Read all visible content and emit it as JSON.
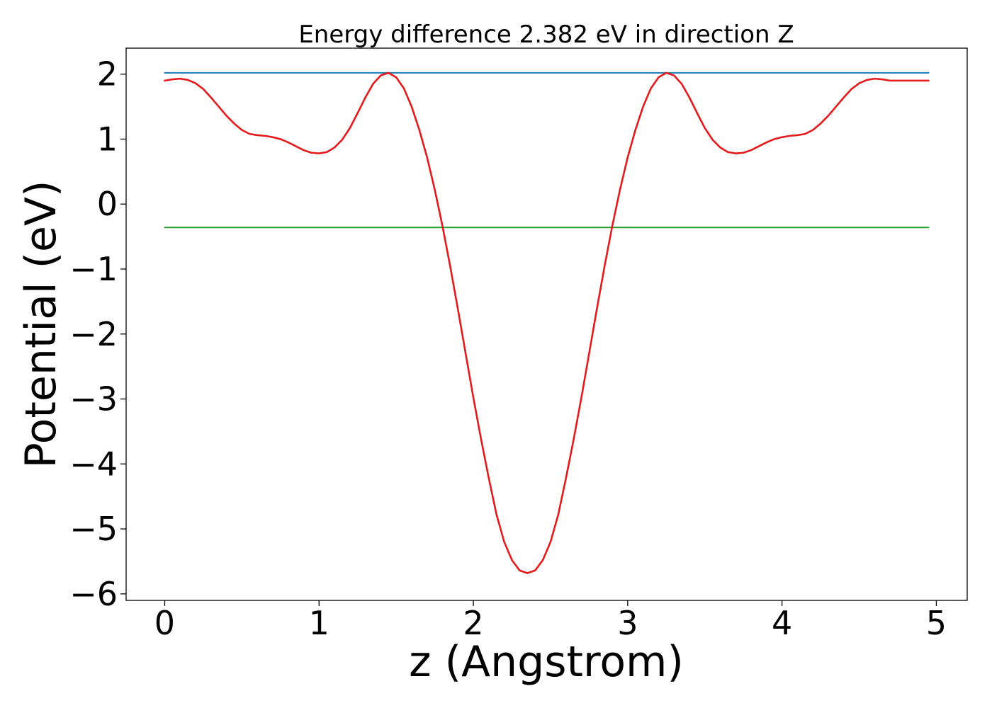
{
  "chart_data": {
    "type": "line",
    "title": "Energy difference 2.382 eV in direction Z",
    "xlabel": "z (Angstrom)",
    "ylabel": "Potential (eV)",
    "xlim": [
      -0.25,
      5.2
    ],
    "ylim": [
      -6.1,
      2.4
    ],
    "xticks": [
      0,
      1,
      2,
      3,
      4,
      5
    ],
    "yticks": [
      2,
      1,
      0,
      -1,
      -2,
      -3,
      -4,
      -5,
      -6
    ],
    "xtick_labels": [
      "0",
      "1",
      "2",
      "3",
      "4",
      "5"
    ],
    "ytick_labels": [
      "2",
      "1",
      "0",
      "−1",
      "−2",
      "−3",
      "−4",
      "−5",
      "−6"
    ],
    "grid": false,
    "series": [
      {
        "color": "#1f77b4",
        "x": [
          0,
          4.95
        ],
        "y": [
          2.02,
          2.02
        ]
      },
      {
        "color": "#2ca02c",
        "x": [
          0,
          4.95
        ],
        "y": [
          -0.36,
          -0.36
        ]
      },
      {
        "color": "#e41a1c",
        "x": [
          0,
          0.05,
          0.1,
          0.15,
          0.2,
          0.25,
          0.3,
          0.35,
          0.4,
          0.45,
          0.5,
          0.55,
          0.6,
          0.65,
          0.7,
          0.75,
          0.8,
          0.85,
          0.9,
          0.95,
          1.0,
          1.05,
          1.1,
          1.15,
          1.2,
          1.25,
          1.3,
          1.35,
          1.4,
          1.45,
          1.5,
          1.55,
          1.6,
          1.65,
          1.7,
          1.75,
          1.8,
          1.85,
          1.9,
          1.95,
          2.0,
          2.05,
          2.1,
          2.15,
          2.2,
          2.25,
          2.3,
          2.35,
          2.4,
          2.45,
          2.5,
          2.55,
          2.6,
          2.65,
          2.7,
          2.75,
          2.8,
          2.85,
          2.9,
          2.95,
          3.0,
          3.05,
          3.1,
          3.15,
          3.2,
          3.25,
          3.3,
          3.35,
          3.4,
          3.45,
          3.5,
          3.55,
          3.6,
          3.65,
          3.7,
          3.75,
          3.8,
          3.85,
          3.9,
          3.95,
          4.0,
          4.05,
          4.1,
          4.15,
          4.2,
          4.25,
          4.3,
          4.35,
          4.4,
          4.45,
          4.5,
          4.55,
          4.6,
          4.65,
          4.7,
          4.75,
          4.8,
          4.85,
          4.9,
          4.95
        ],
        "y": [
          1.9,
          1.92,
          1.93,
          1.91,
          1.86,
          1.77,
          1.64,
          1.5,
          1.36,
          1.24,
          1.14,
          1.08,
          1.06,
          1.05,
          1.03,
          1.0,
          0.95,
          0.89,
          0.83,
          0.79,
          0.78,
          0.8,
          0.87,
          0.99,
          1.17,
          1.4,
          1.64,
          1.85,
          1.98,
          2.02,
          1.95,
          1.78,
          1.5,
          1.14,
          0.72,
          0.22,
          -0.34,
          -0.96,
          -1.62,
          -2.3,
          -2.98,
          -3.62,
          -4.22,
          -4.78,
          -5.2,
          -5.48,
          -5.64,
          -5.68,
          -5.64,
          -5.48,
          -5.2,
          -4.78,
          -4.22,
          -3.62,
          -2.98,
          -2.3,
          -1.62,
          -0.96,
          -0.34,
          0.22,
          0.72,
          1.14,
          1.5,
          1.78,
          1.95,
          2.02,
          1.98,
          1.85,
          1.64,
          1.4,
          1.17,
          0.99,
          0.87,
          0.8,
          0.78,
          0.79,
          0.83,
          0.89,
          0.95,
          1.0,
          1.03,
          1.05,
          1.06,
          1.08,
          1.14,
          1.24,
          1.36,
          1.5,
          1.64,
          1.77,
          1.86,
          1.91,
          1.93,
          1.92,
          1.9,
          1.9,
          1.9,
          1.9,
          1.9,
          1.9
        ]
      }
    ]
  }
}
